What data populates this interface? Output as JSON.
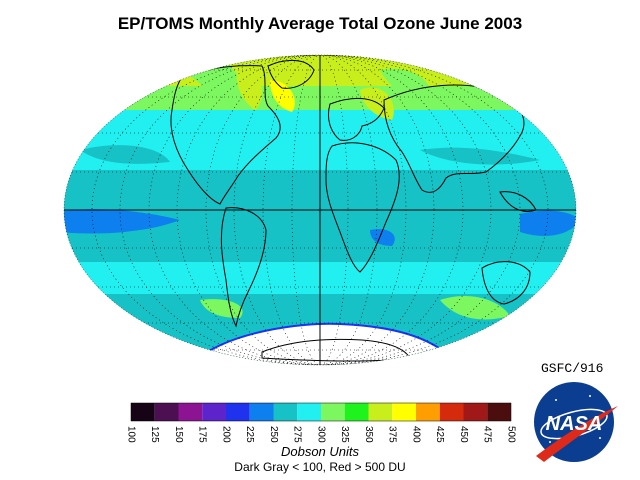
{
  "title": "EP/TOMS Monthly Average Total Ozone June 2003",
  "credit": "GSFC/916",
  "logo_text": "NASA",
  "colorbar": {
    "ticks": [
      "100",
      "125",
      "150",
      "175",
      "200",
      "225",
      "250",
      "275",
      "300",
      "325",
      "350",
      "375",
      "400",
      "425",
      "450",
      "475",
      "500"
    ],
    "colors": [
      "#160416",
      "#4b0f52",
      "#8c1493",
      "#5d24cc",
      "#1f32ee",
      "#0e7fee",
      "#16c2c6",
      "#22f0f0",
      "#7cf760",
      "#1ef31e",
      "#c8ef1c",
      "#ffff00",
      "#ff9e00",
      "#d62a0c",
      "#a11818",
      "#4b0d0d"
    ],
    "units_label": "Dobson Units",
    "range_note": "Dark Gray < 100, Red > 500 DU"
  },
  "map": {
    "projection": "Hammer-Aitoff",
    "ocean_land_note_colors": {
      "outline": "#000000",
      "no_data": "#ffffff",
      "antarctic_edge": "#1f32ee"
    },
    "latitude_bands": [
      {
        "from_lat": 90,
        "to_lat": 66,
        "color": "#7cf760"
      },
      {
        "from_lat": 66,
        "to_lat": 52,
        "color": "#c8ef1c"
      },
      {
        "from_lat": 52,
        "to_lat": 42,
        "color": "#7cf760"
      },
      {
        "from_lat": 42,
        "to_lat": 27,
        "color": "#22f0f0"
      },
      {
        "from_lat": 27,
        "to_lat": 14,
        "color": "#16c2c6"
      },
      {
        "from_lat": 14,
        "to_lat": -14,
        "color": "#16c2c6"
      },
      {
        "from_lat": -14,
        "to_lat": -30,
        "color": "#16c2c6"
      },
      {
        "from_lat": -30,
        "to_lat": -42,
        "color": "#22f0f0"
      },
      {
        "from_lat": -42,
        "to_lat": -58,
        "color": "#16c2c6"
      },
      {
        "from_lat": -58,
        "to_lat": -90,
        "color": "#ffffff"
      }
    ]
  }
}
